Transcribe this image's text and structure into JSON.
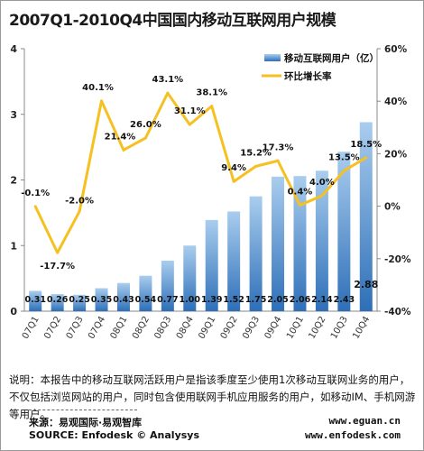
{
  "title": "2007Q1-2010Q4中国国内移动互联网用户规模",
  "chart_data": {
    "type": "bar",
    "categories": [
      "07Q1",
      "07Q2",
      "07Q3",
      "07Q4",
      "08Q1",
      "08Q2",
      "08Q3",
      "08Q4",
      "09Q1",
      "09Q2",
      "09Q3",
      "09Q4",
      "10Q1",
      "10Q2",
      "10Q3",
      "10Q4"
    ],
    "series": [
      {
        "name": "移动互联网用户（亿）",
        "type": "bar",
        "axis": "left",
        "values": [
          0.31,
          0.26,
          0.25,
          0.35,
          0.43,
          0.54,
          0.77,
          1.0,
          1.39,
          1.52,
          1.75,
          2.05,
          2.06,
          2.14,
          2.43,
          2.88
        ],
        "labels": [
          "0.31",
          "0.26",
          "0.25",
          "0.35",
          "0.43",
          "0.54",
          "0.77",
          "1.00",
          "1.39",
          "1.52",
          "1.75",
          "2.05",
          "2.06",
          "2.14",
          "2.43",
          "2.88"
        ]
      },
      {
        "name": "环比增长率",
        "type": "line",
        "axis": "right",
        "values": [
          -0.1,
          -17.7,
          -2.0,
          40.1,
          21.4,
          26.0,
          43.1,
          31.1,
          38.1,
          9.4,
          15.2,
          17.3,
          0.4,
          4.0,
          13.5,
          18.5
        ],
        "labels": [
          "-0.1%",
          "-17.7%",
          "-2.0%",
          "40.1%",
          "21.4%",
          "26.0%",
          "43.1%",
          "31.1%",
          "38.1%",
          "9.4%",
          "15.2%",
          "17.3%",
          "0.4%",
          "4.0%",
          "13.5%",
          "18.5%"
        ]
      }
    ],
    "y_left": {
      "min": 0,
      "max": 4,
      "ticks": [
        "0",
        "1",
        "2",
        "3",
        "4"
      ]
    },
    "y_right": {
      "min": -40,
      "max": 60,
      "ticks": [
        "-40%",
        "-20%",
        "0%",
        "20%",
        "40%",
        "60%"
      ]
    },
    "legend_position": "top-right",
    "colors": {
      "bar_light": "#a9cdee",
      "bar_dark": "#2e6fb8",
      "line": "#f6c021"
    }
  },
  "note": "说明：本报告中的移动互联网活跃用户是指该季度至少使用1次移动互联网业务的用户，不仅包括浏览网站的用户，同时包含使用联网手机应用服务的用户，如移动IM、手机网游等用户。",
  "source": "来源：易观国际·易观智库",
  "source_en": "SOURCE: Enfodesk © Analysys",
  "url1": "www.eguan.cn",
  "url2": "www.enfodesk.com"
}
